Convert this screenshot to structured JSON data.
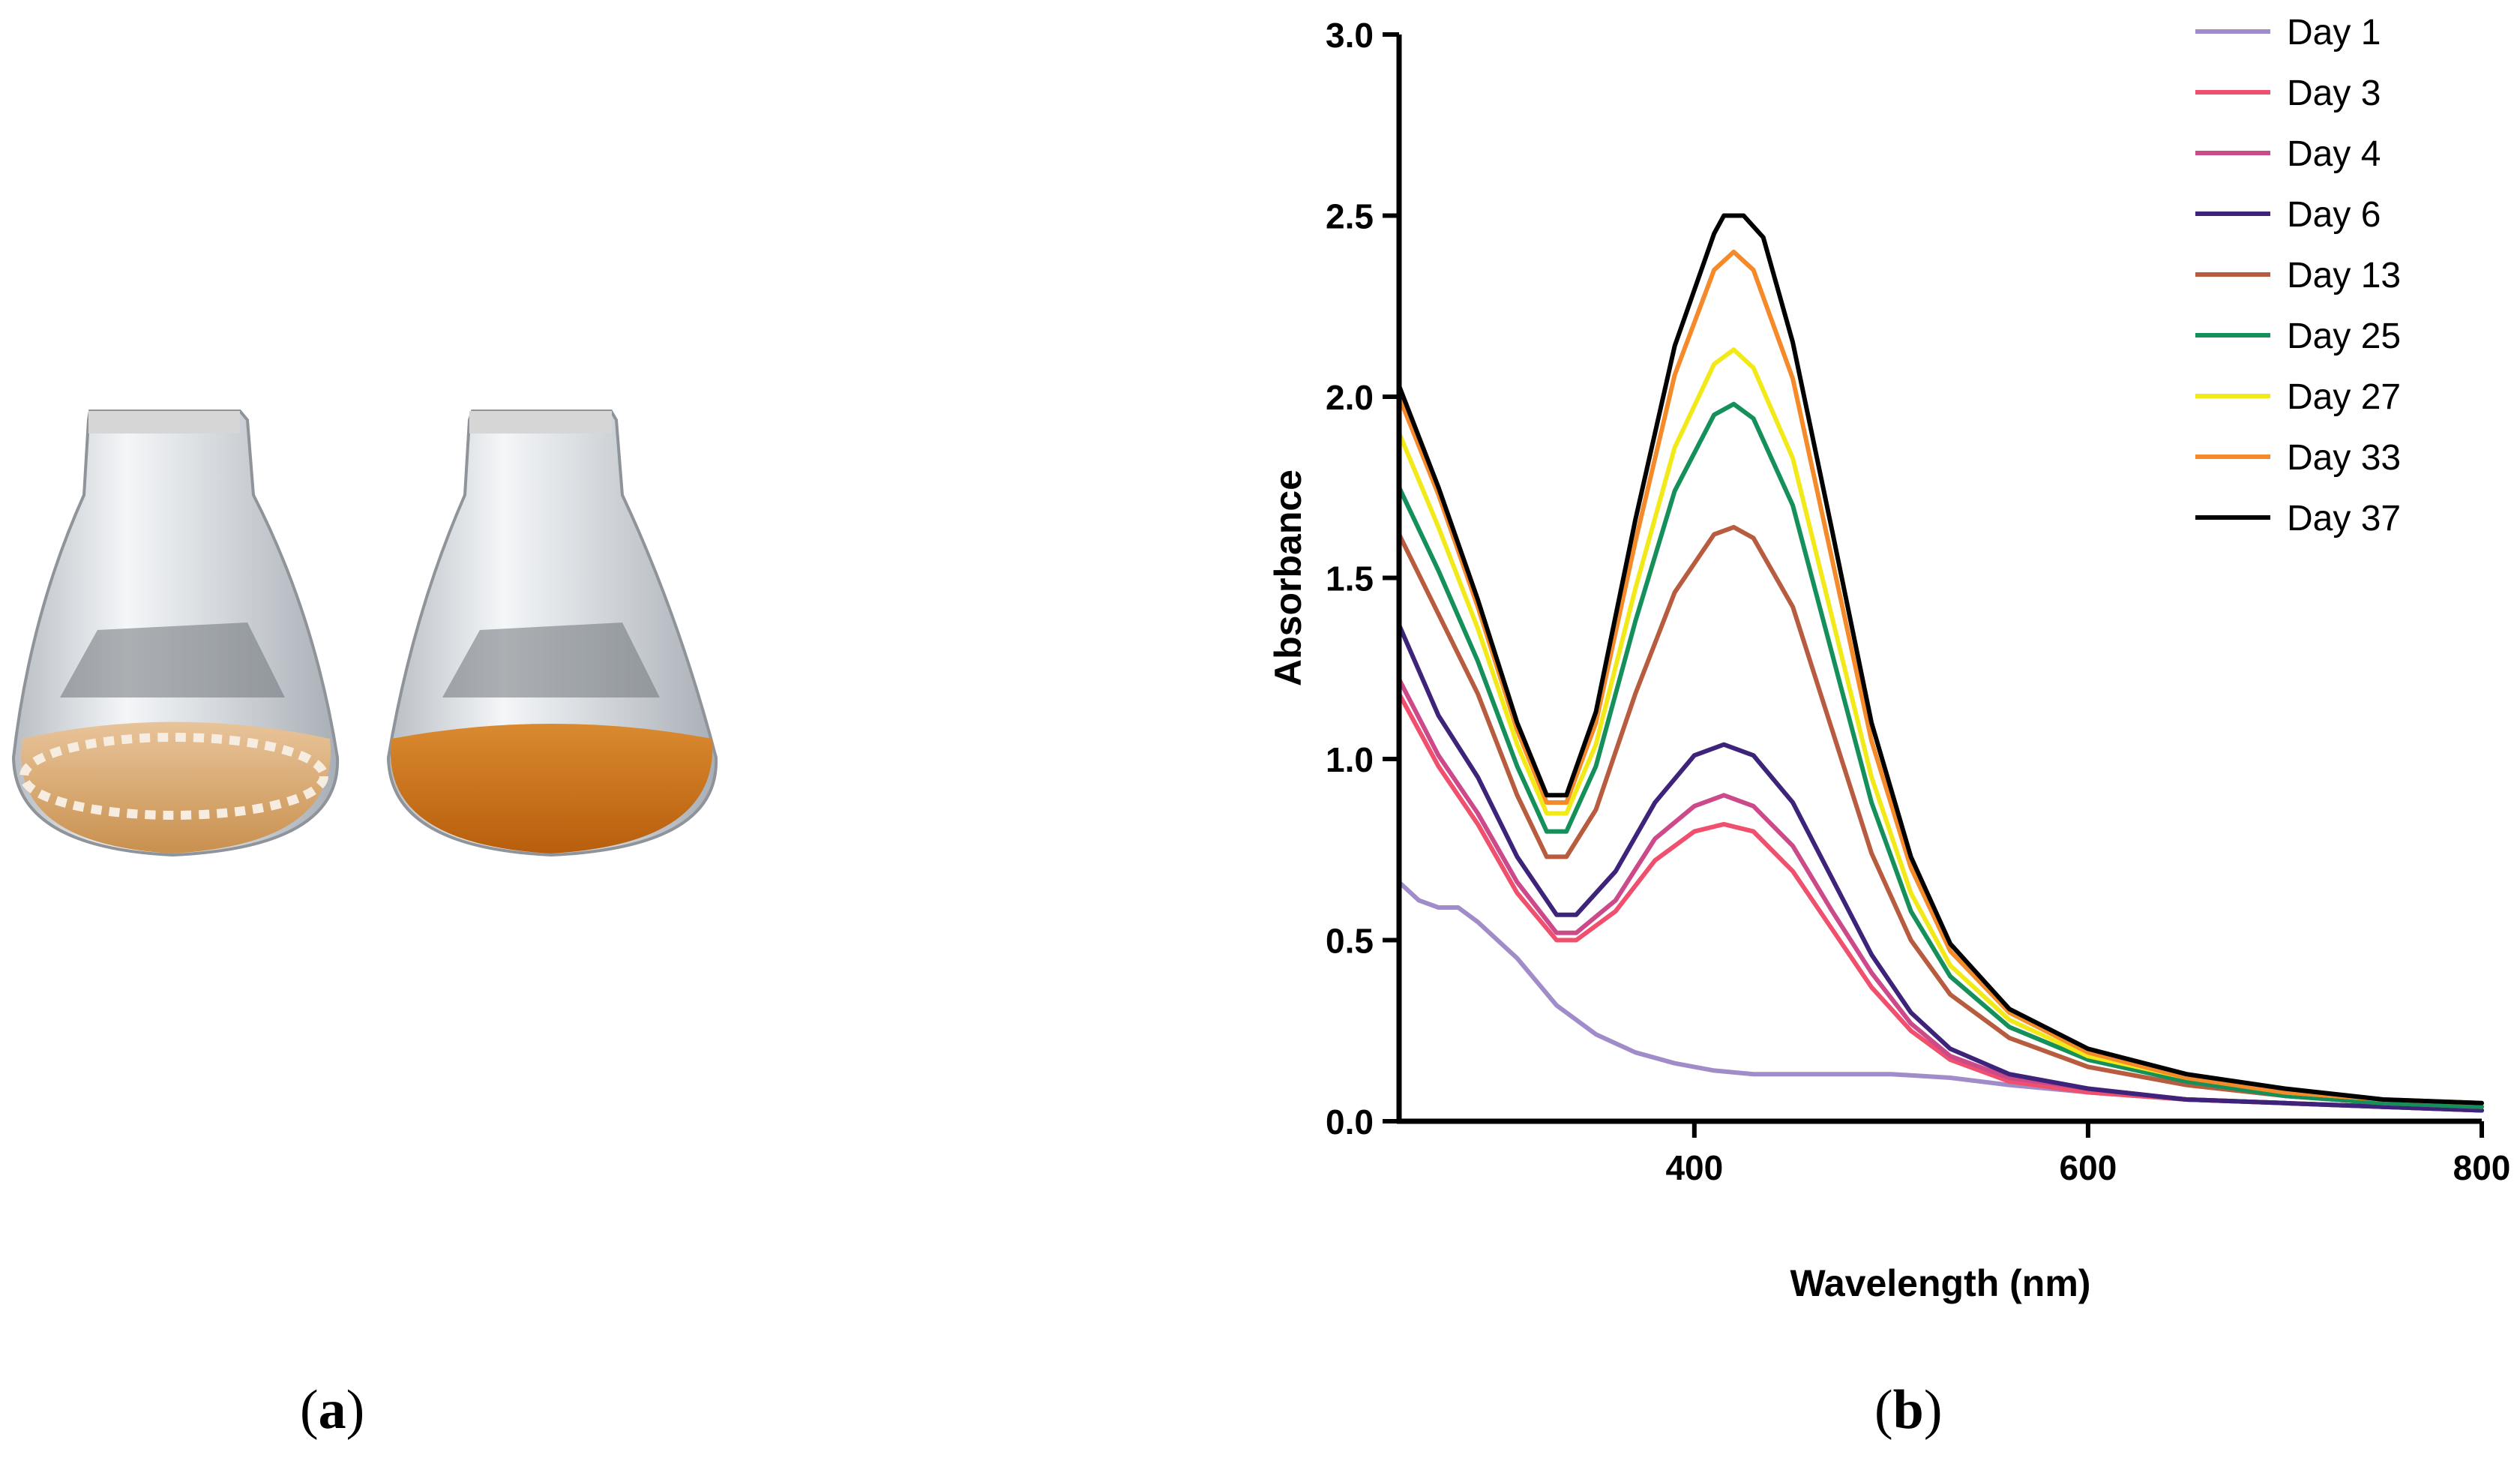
{
  "panels": {
    "a": {
      "label": "a",
      "open": "(",
      "close": ")"
    },
    "b": {
      "label": "b",
      "open": "(",
      "close": ")"
    }
  },
  "photo": {
    "flasks": [
      {
        "name": "control-flask",
        "liquid_color": "#d8a46c",
        "foam": true
      },
      {
        "name": "treated-flask",
        "liquid_color": "#c46a12",
        "foam": false
      }
    ],
    "colors": {
      "glass": "#e4e7ea",
      "cap": "#d6d6d6"
    }
  },
  "chart_data": {
    "type": "line",
    "title": "",
    "xlabel": "Wavelength (nm)",
    "ylabel": "Absorbance",
    "xlim": [
      250,
      800
    ],
    "ylim": [
      0,
      3.0
    ],
    "xticks": [
      400,
      600,
      800
    ],
    "yticks": [
      0.0,
      0.5,
      1.0,
      1.5,
      2.0,
      2.5,
      3.0
    ],
    "ytick_labels": [
      "0.0",
      "0.5",
      "1.0",
      "1.5",
      "2.0",
      "2.5",
      "3.0"
    ],
    "grid": false,
    "legend_position": "top-right",
    "series": [
      {
        "name": "Day 1",
        "color": "#a08cc8",
        "points": [
          [
            250,
            0.66
          ],
          [
            260,
            0.61
          ],
          [
            270,
            0.59
          ],
          [
            280,
            0.59
          ],
          [
            290,
            0.55
          ],
          [
            310,
            0.45
          ],
          [
            330,
            0.32
          ],
          [
            350,
            0.24
          ],
          [
            370,
            0.19
          ],
          [
            390,
            0.16
          ],
          [
            410,
            0.14
          ],
          [
            430,
            0.13
          ],
          [
            450,
            0.13
          ],
          [
            470,
            0.13
          ],
          [
            500,
            0.13
          ],
          [
            530,
            0.12
          ],
          [
            560,
            0.1
          ],
          [
            600,
            0.08
          ],
          [
            650,
            0.06
          ],
          [
            700,
            0.05
          ],
          [
            750,
            0.04
          ],
          [
            800,
            0.03
          ]
        ]
      },
      {
        "name": "Day 3",
        "color": "#f0506e",
        "points": [
          [
            250,
            1.18
          ],
          [
            270,
            0.98
          ],
          [
            290,
            0.82
          ],
          [
            310,
            0.63
          ],
          [
            330,
            0.5
          ],
          [
            340,
            0.5
          ],
          [
            360,
            0.58
          ],
          [
            380,
            0.72
          ],
          [
            400,
            0.8
          ],
          [
            415,
            0.82
          ],
          [
            430,
            0.8
          ],
          [
            450,
            0.69
          ],
          [
            470,
            0.53
          ],
          [
            490,
            0.37
          ],
          [
            510,
            0.25
          ],
          [
            530,
            0.17
          ],
          [
            560,
            0.11
          ],
          [
            600,
            0.08
          ],
          [
            650,
            0.06
          ],
          [
            700,
            0.05
          ],
          [
            750,
            0.04
          ],
          [
            800,
            0.03
          ]
        ]
      },
      {
        "name": "Day 4",
        "color": "#cc4a8a",
        "points": [
          [
            250,
            1.22
          ],
          [
            270,
            1.01
          ],
          [
            290,
            0.85
          ],
          [
            310,
            0.66
          ],
          [
            330,
            0.52
          ],
          [
            340,
            0.52
          ],
          [
            360,
            0.61
          ],
          [
            380,
            0.78
          ],
          [
            400,
            0.87
          ],
          [
            415,
            0.9
          ],
          [
            430,
            0.87
          ],
          [
            450,
            0.76
          ],
          [
            470,
            0.58
          ],
          [
            490,
            0.41
          ],
          [
            510,
            0.27
          ],
          [
            530,
            0.18
          ],
          [
            560,
            0.12
          ],
          [
            600,
            0.09
          ],
          [
            650,
            0.06
          ],
          [
            700,
            0.05
          ],
          [
            750,
            0.04
          ],
          [
            800,
            0.03
          ]
        ]
      },
      {
        "name": "Day 6",
        "color": "#3d237a",
        "points": [
          [
            250,
            1.37
          ],
          [
            270,
            1.12
          ],
          [
            290,
            0.95
          ],
          [
            310,
            0.73
          ],
          [
            330,
            0.57
          ],
          [
            340,
            0.57
          ],
          [
            360,
            0.69
          ],
          [
            380,
            0.88
          ],
          [
            400,
            1.01
          ],
          [
            415,
            1.04
          ],
          [
            430,
            1.01
          ],
          [
            450,
            0.88
          ],
          [
            470,
            0.67
          ],
          [
            490,
            0.46
          ],
          [
            510,
            0.3
          ],
          [
            530,
            0.2
          ],
          [
            560,
            0.13
          ],
          [
            600,
            0.09
          ],
          [
            650,
            0.06
          ],
          [
            700,
            0.05
          ],
          [
            750,
            0.04
          ],
          [
            800,
            0.03
          ]
        ]
      },
      {
        "name": "Day 13",
        "color": "#b85c40",
        "points": [
          [
            250,
            1.62
          ],
          [
            270,
            1.4
          ],
          [
            290,
            1.18
          ],
          [
            310,
            0.9
          ],
          [
            325,
            0.73
          ],
          [
            335,
            0.73
          ],
          [
            350,
            0.86
          ],
          [
            370,
            1.18
          ],
          [
            390,
            1.46
          ],
          [
            410,
            1.62
          ],
          [
            420,
            1.64
          ],
          [
            430,
            1.61
          ],
          [
            450,
            1.42
          ],
          [
            470,
            1.08
          ],
          [
            490,
            0.74
          ],
          [
            510,
            0.5
          ],
          [
            530,
            0.35
          ],
          [
            560,
            0.23
          ],
          [
            600,
            0.15
          ],
          [
            650,
            0.1
          ],
          [
            700,
            0.07
          ],
          [
            750,
            0.05
          ],
          [
            800,
            0.04
          ]
        ]
      },
      {
        "name": "Day 25",
        "color": "#15905a",
        "points": [
          [
            250,
            1.75
          ],
          [
            270,
            1.52
          ],
          [
            290,
            1.27
          ],
          [
            310,
            0.98
          ],
          [
            325,
            0.8
          ],
          [
            335,
            0.8
          ],
          [
            350,
            0.98
          ],
          [
            370,
            1.38
          ],
          [
            390,
            1.74
          ],
          [
            410,
            1.95
          ],
          [
            420,
            1.98
          ],
          [
            430,
            1.94
          ],
          [
            450,
            1.7
          ],
          [
            470,
            1.29
          ],
          [
            490,
            0.88
          ],
          [
            510,
            0.58
          ],
          [
            530,
            0.4
          ],
          [
            560,
            0.26
          ],
          [
            600,
            0.17
          ],
          [
            650,
            0.11
          ],
          [
            700,
            0.07
          ],
          [
            750,
            0.05
          ],
          [
            800,
            0.04
          ]
        ]
      },
      {
        "name": "Day 27",
        "color": "#f2ea18",
        "points": [
          [
            250,
            1.9
          ],
          [
            270,
            1.64
          ],
          [
            290,
            1.36
          ],
          [
            310,
            1.04
          ],
          [
            325,
            0.85
          ],
          [
            335,
            0.85
          ],
          [
            350,
            1.04
          ],
          [
            370,
            1.47
          ],
          [
            390,
            1.86
          ],
          [
            410,
            2.09
          ],
          [
            420,
            2.13
          ],
          [
            430,
            2.08
          ],
          [
            450,
            1.83
          ],
          [
            470,
            1.39
          ],
          [
            490,
            0.95
          ],
          [
            510,
            0.63
          ],
          [
            530,
            0.43
          ],
          [
            560,
            0.28
          ],
          [
            600,
            0.18
          ],
          [
            650,
            0.12
          ],
          [
            700,
            0.08
          ],
          [
            750,
            0.06
          ],
          [
            800,
            0.05
          ]
        ]
      },
      {
        "name": "Day 33",
        "color": "#f58a2a",
        "points": [
          [
            250,
            2.0
          ],
          [
            270,
            1.73
          ],
          [
            290,
            1.42
          ],
          [
            310,
            1.08
          ],
          [
            325,
            0.88
          ],
          [
            335,
            0.88
          ],
          [
            350,
            1.1
          ],
          [
            370,
            1.6
          ],
          [
            390,
            2.06
          ],
          [
            410,
            2.35
          ],
          [
            420,
            2.4
          ],
          [
            430,
            2.35
          ],
          [
            450,
            2.05
          ],
          [
            470,
            1.55
          ],
          [
            490,
            1.05
          ],
          [
            510,
            0.7
          ],
          [
            530,
            0.47
          ],
          [
            560,
            0.3
          ],
          [
            600,
            0.19
          ],
          [
            650,
            0.12
          ],
          [
            700,
            0.08
          ],
          [
            750,
            0.06
          ],
          [
            800,
            0.05
          ]
        ]
      },
      {
        "name": "Day 37",
        "color": "#000000",
        "points": [
          [
            250,
            2.03
          ],
          [
            270,
            1.75
          ],
          [
            290,
            1.44
          ],
          [
            310,
            1.1
          ],
          [
            325,
            0.9
          ],
          [
            335,
            0.9
          ],
          [
            350,
            1.13
          ],
          [
            370,
            1.66
          ],
          [
            390,
            2.14
          ],
          [
            410,
            2.45
          ],
          [
            415,
            2.5
          ],
          [
            425,
            2.5
          ],
          [
            435,
            2.44
          ],
          [
            450,
            2.15
          ],
          [
            470,
            1.63
          ],
          [
            490,
            1.1
          ],
          [
            510,
            0.73
          ],
          [
            530,
            0.49
          ],
          [
            560,
            0.31
          ],
          [
            600,
            0.2
          ],
          [
            650,
            0.13
          ],
          [
            700,
            0.09
          ],
          [
            750,
            0.06
          ],
          [
            800,
            0.05
          ]
        ]
      }
    ]
  }
}
